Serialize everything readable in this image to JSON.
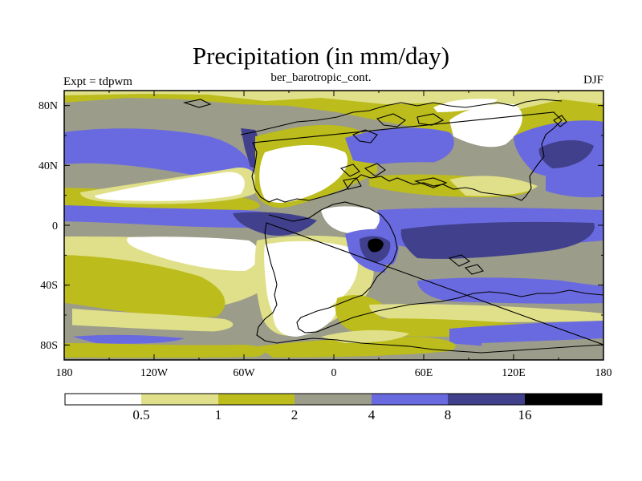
{
  "title": "Precipitation (in mm/day)",
  "subtitle": "ber_barotropic_cont.",
  "left_label": "Expt = tdpwm",
  "right_label": "DJF",
  "lat_ticks": [
    {
      "value": 80,
      "label": "80N"
    },
    {
      "value": 40,
      "label": "40N"
    },
    {
      "value": 0,
      "label": "0"
    },
    {
      "value": -40,
      "label": "40S"
    },
    {
      "value": -80,
      "label": "80S"
    }
  ],
  "lon_ticks": [
    {
      "value": -180,
      "label": "180"
    },
    {
      "value": -120,
      "label": "120W"
    },
    {
      "value": -60,
      "label": "60W"
    },
    {
      "value": 0,
      "label": "0"
    },
    {
      "value": 60,
      "label": "60E"
    },
    {
      "value": 120,
      "label": "120E"
    },
    {
      "value": 180,
      "label": "180"
    }
  ],
  "colorbar": {
    "colors": [
      "#ffffff",
      "#e0e08a",
      "#bcbc1c",
      "#9c9c8a",
      "#6a6ae0",
      "#40408c",
      "#000000"
    ],
    "labels": [
      "0.5",
      "1",
      "2",
      "4",
      "8",
      "16"
    ]
  },
  "palette": {
    "white": "#ffffff",
    "light_yellow": "#e0e08a",
    "olive": "#bcbc1c",
    "gray": "#9c9c8a",
    "blue": "#6a6ae0",
    "navy": "#40408c",
    "black": "#000000"
  }
}
